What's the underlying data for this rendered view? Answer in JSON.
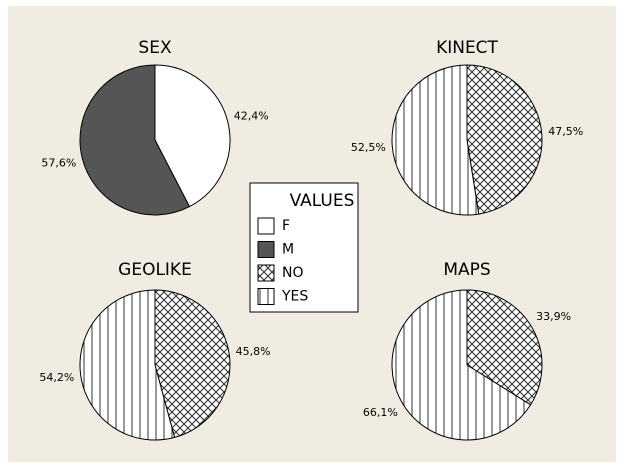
{
  "chart_data": [
    {
      "type": "pie",
      "title": "SEX",
      "categories": [
        "F",
        "M"
      ],
      "values": [
        42.4,
        57.6
      ],
      "value_labels": [
        "42,4%",
        "57,6%"
      ]
    },
    {
      "type": "pie",
      "title": "KINECT",
      "categories": [
        "NO",
        "YES"
      ],
      "values": [
        47.5,
        52.5
      ],
      "value_labels": [
        "47,5%",
        "52,5%"
      ]
    },
    {
      "type": "pie",
      "title": "GEOLIKE",
      "categories": [
        "NO",
        "YES"
      ],
      "values": [
        45.8,
        54.2
      ],
      "value_labels": [
        "45,8%",
        "54,2%"
      ]
    },
    {
      "type": "pie",
      "title": "MAPS",
      "categories": [
        "NO",
        "YES"
      ],
      "values": [
        33.9,
        66.1
      ],
      "value_labels": [
        "33,9%",
        "66,1%"
      ]
    }
  ],
  "legend": {
    "title": "VALUES",
    "names": [
      "F",
      "M",
      "NO",
      "YES"
    ],
    "fills": [
      "white",
      "dark",
      "crosshatch",
      "vertical-lines"
    ]
  }
}
